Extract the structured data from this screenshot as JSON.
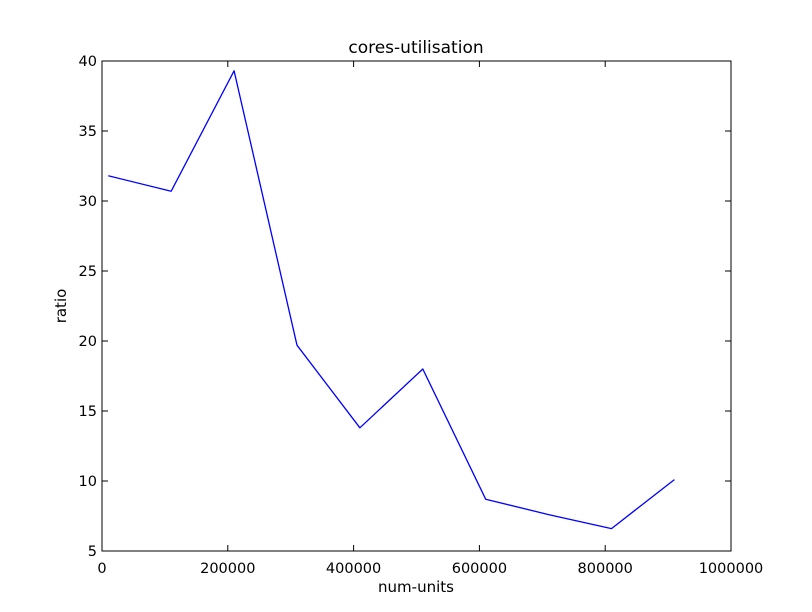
{
  "chart_data": {
    "type": "line",
    "title": "cores-utilisation",
    "xlabel": "num-units",
    "ylabel": "ratio",
    "xlim": [
      0,
      1000000
    ],
    "ylim": [
      5,
      40
    ],
    "xticks": [
      0,
      200000,
      400000,
      600000,
      800000,
      1000000
    ],
    "xtick_labels": [
      "0",
      "200000",
      "400000",
      "600000",
      "800000",
      "1000000"
    ],
    "yticks": [
      5,
      10,
      15,
      20,
      25,
      30,
      35,
      40
    ],
    "ytick_labels": [
      "5",
      "10",
      "15",
      "20",
      "25",
      "30",
      "35",
      "40"
    ],
    "grid": false,
    "legend": "none",
    "series": [
      {
        "color": "#0000ff",
        "x": [
          10000,
          110000,
          210000,
          310000,
          410000,
          510000,
          610000,
          710000,
          810000,
          910000
        ],
        "y": [
          31.8,
          30.7,
          39.3,
          19.7,
          13.8,
          18.0,
          8.7,
          7.6,
          6.6,
          10.1
        ]
      }
    ]
  }
}
